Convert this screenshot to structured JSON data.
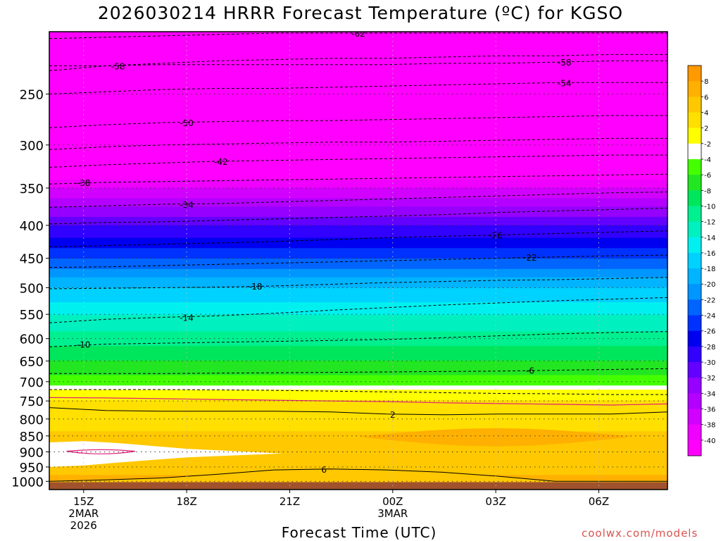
{
  "chart_data": {
    "type": "heatmap",
    "title": "2026030214 HRRR Forecast Temperature (ºC) for KGSO",
    "xlabel": "Forecast Time (UTC)",
    "credit": "coolwx.com/models",
    "x_ticks": [
      {
        "label": "15Z",
        "sub": [
          "2MAR",
          "2026"
        ],
        "hour": 1
      },
      {
        "label": "18Z",
        "sub": [],
        "hour": 4
      },
      {
        "label": "21Z",
        "sub": [],
        "hour": 7
      },
      {
        "label": "00Z",
        "sub": [
          "3MAR"
        ],
        "hour": 10
      },
      {
        "label": "03Z",
        "sub": [],
        "hour": 13
      },
      {
        "label": "06Z",
        "sub": [],
        "hour": 16
      }
    ],
    "x_range_hours": [
      0,
      18
    ],
    "y_ticks": [
      {
        "label": "250",
        "p": 250
      },
      {
        "label": "300",
        "p": 300
      },
      {
        "label": "350",
        "p": 350
      },
      {
        "label": "400",
        "p": 400
      },
      {
        "label": "450",
        "p": 450
      },
      {
        "label": "500",
        "p": 500
      },
      {
        "label": "550",
        "p": 550
      },
      {
        "label": "600",
        "p": 600
      },
      {
        "label": "650",
        "p": 650
      },
      {
        "label": "700",
        "p": 700
      },
      {
        "label": "750",
        "p": 750
      },
      {
        "label": "800",
        "p": 800
      },
      {
        "label": "850",
        "p": 850
      },
      {
        "label": "900",
        "p": 900
      },
      {
        "label": "950",
        "p": 950
      },
      {
        "label": "1000",
        "p": 1000
      }
    ],
    "y_range_hpa": [
      200,
      1030
    ],
    "y_scale": "log",
    "colorbar": {
      "labels": [
        "8",
        "6",
        "4",
        "2",
        "-2",
        "-4",
        "-6",
        "-8",
        "-10",
        "-12",
        "-14",
        "-16",
        "-18",
        "-20",
        "-22",
        "-24",
        "-26",
        "-28",
        "-30",
        "-32",
        "-34",
        "-36",
        "-38",
        "-40"
      ],
      "colors": [
        "#ff9900",
        "#ffb000",
        "#ffc800",
        "#ffe000",
        "#ffff00",
        "#ffffff",
        "#44ff00",
        "#22e622",
        "#00e65c",
        "#00f090",
        "#00f0c0",
        "#00f0f0",
        "#00d2ff",
        "#00b4ff",
        "#0096ff",
        "#0064ff",
        "#0032ff",
        "#0000f0",
        "#3200ff",
        "#6400ff",
        "#9600ff",
        "#b400ff",
        "#d200ff",
        "#f000ff",
        "#ff00ff"
      ]
    },
    "band_layers": [
      {
        "p": 200,
        "t": -62
      },
      {
        "p": 250,
        "t": -56
      },
      {
        "p": 300,
        "t": -48
      },
      {
        "p": 350,
        "t": -38
      },
      {
        "p": 400,
        "t": -30
      },
      {
        "p": 450,
        "t": -24
      },
      {
        "p": 500,
        "t": -18
      },
      {
        "p": 550,
        "t": -14
      },
      {
        "p": 600,
        "t": -11
      },
      {
        "p": 650,
        "t": -8
      },
      {
        "p": 700,
        "t": -5
      },
      {
        "p": 720,
        "t": -3
      },
      {
        "p": 730,
        "t": 1
      },
      {
        "p": 760,
        "t": 2.5
      },
      {
        "p": 800,
        "t": 3
      },
      {
        "p": 850,
        "t": 4.5
      },
      {
        "p": 900,
        "t": 5
      },
      {
        "p": 950,
        "t": 5.5
      },
      {
        "p": 980,
        "t": 6
      },
      {
        "p": 1000,
        "t": 6
      }
    ],
    "contours": [
      {
        "value": -62,
        "label": "-62",
        "dashed": true,
        "p": [
          205,
          204,
          203,
          202,
          201,
          201,
          201,
          201,
          201,
          201,
          201,
          201
        ],
        "label_hour": 9
      },
      {
        "value": -58,
        "label": "-58",
        "dashed": true,
        "p": [
          230,
          226,
          224,
          222,
          221,
          220,
          220,
          219,
          218,
          218,
          217,
          217
        ],
        "label_hour": 2
      },
      {
        "value": -58,
        "label": "-58",
        "dashed": true,
        "p": [
          226,
          226,
          225,
          225,
          225,
          225,
          225,
          224,
          224,
          223,
          222,
          222
        ],
        "label_hour": 15
      },
      {
        "value": -54,
        "label": "-54",
        "dashed": true,
        "p": [
          250,
          248,
          246,
          245,
          245,
          244,
          243,
          242,
          241,
          240,
          240,
          240
        ],
        "label_hour": 15
      },
      {
        "value": -50,
        "label": "-50",
        "dashed": true,
        "p": [
          282,
          279,
          277,
          276,
          275,
          275,
          274,
          273,
          272,
          271,
          270,
          270
        ],
        "label_hour": 4
      },
      {
        "value": -46,
        "label": "",
        "dashed": true,
        "p": [
          305,
          302,
          300,
          299,
          298,
          297,
          297,
          296,
          295,
          294,
          293,
          293
        ],
        "label_hour": 8
      },
      {
        "value": -42,
        "label": "-42",
        "dashed": true,
        "p": [
          325,
          322,
          320,
          318,
          317,
          316,
          315,
          314,
          313,
          312,
          311,
          311
        ],
        "label_hour": 5
      },
      {
        "value": -38,
        "label": "-38",
        "dashed": true,
        "p": [
          345,
          343,
          342,
          341,
          340,
          339,
          338,
          337,
          336,
          335,
          334,
          333
        ],
        "label_hour": 1
      },
      {
        "value": -34,
        "label": "-34",
        "dashed": true,
        "p": [
          375,
          373,
          371,
          370,
          368,
          366,
          364,
          362,
          360,
          358,
          356,
          355
        ],
        "label_hour": 4
      },
      {
        "value": -30,
        "label": "",
        "dashed": true,
        "p": [
          398,
          396,
          395,
          393,
          391,
          389,
          387,
          385,
          382,
          380,
          378,
          376
        ],
        "label_hour": 8
      },
      {
        "value": -26,
        "label": "-26",
        "dashed": true,
        "p": [
          432,
          430,
          428,
          426,
          424,
          421,
          418,
          416,
          414,
          412,
          410,
          408
        ],
        "label_hour": 13
      },
      {
        "value": -22,
        "label": "-22",
        "dashed": true,
        "p": [
          465,
          464,
          462,
          460,
          458,
          456,
          454,
          452,
          450,
          448,
          446,
          445
        ],
        "label_hour": 14
      },
      {
        "value": -18,
        "label": "-18",
        "dashed": true,
        "p": [
          502,
          501,
          500,
          499,
          497,
          494,
          491,
          489,
          487,
          486,
          484,
          482
        ],
        "label_hour": 6
      },
      {
        "value": -14,
        "label": "-14",
        "dashed": true,
        "p": [
          567,
          560,
          556,
          553,
          548,
          542,
          537,
          532,
          528,
          524,
          521,
          518
        ],
        "label_hour": 4
      },
      {
        "value": -10,
        "label": "-10",
        "dashed": true,
        "p": [
          618,
          612,
          610,
          608,
          606,
          604,
          602,
          598,
          594,
          590,
          587,
          585
        ],
        "label_hour": 1
      },
      {
        "value": -6,
        "label": "-6",
        "dashed": true,
        "p": [
          680,
          680,
          680,
          679,
          678,
          677,
          676,
          675,
          674,
          672,
          670,
          668
        ],
        "label_hour": 14
      },
      {
        "value": -2,
        "label": "",
        "dashed": true,
        "p": [
          720,
          720,
          720,
          721,
          722,
          724,
          726,
          728,
          730,
          731,
          733,
          733
        ],
        "label_hour": 8
      },
      {
        "value": 2,
        "label": "2",
        "dashed": false,
        "p": [
          768,
          776,
          778,
          778,
          778,
          780,
          786,
          788,
          786,
          786,
          786,
          780
        ],
        "label_hour": 10
      },
      {
        "value": 6,
        "label": "6",
        "dashed": false,
        "p": [
          1000,
          995,
          988,
          975,
          960,
          957,
          960,
          968,
          982,
          1000,
          1000,
          1000
        ],
        "label_hour": 8
      }
    ],
    "zero_line_p": [
      741,
      742,
      744,
      746,
      748,
      750,
      752,
      755,
      757,
      759,
      761,
      758
    ],
    "ground_color": "#a0522d",
    "ground_top_hpa": 1003
  }
}
